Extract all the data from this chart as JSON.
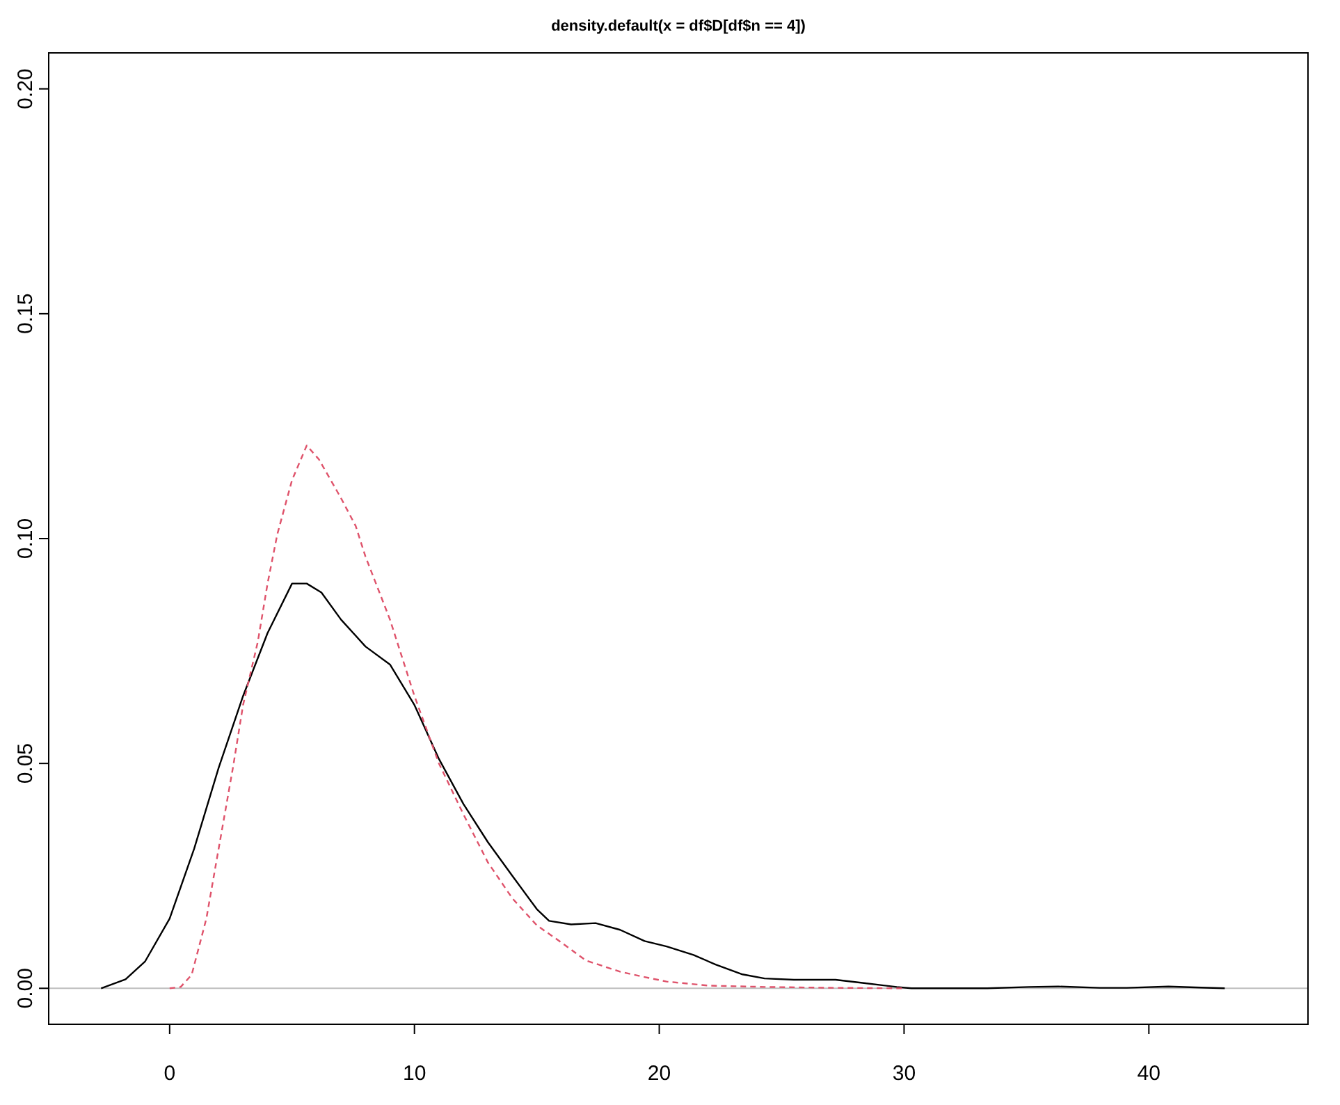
{
  "chart_data": {
    "type": "line",
    "title": "density.default(x = df$D[df$n == 4])",
    "xlim": [
      -4.94,
      46.5
    ],
    "ylim": [
      -0.008,
      0.208
    ],
    "xticks": [
      0,
      10,
      20,
      30,
      40
    ],
    "yticks": [
      {
        "value": 0,
        "label": "0.00"
      },
      {
        "value": 0.05,
        "label": "0.05"
      },
      {
        "value": 0.1,
        "label": "0.10"
      },
      {
        "value": 0.15,
        "label": "0.15"
      },
      {
        "value": 0.2,
        "label": "0.20"
      }
    ],
    "grid": false,
    "ref_lines": [
      {
        "axis": "y",
        "value": 0,
        "color": "#bebebe"
      }
    ],
    "series": [
      {
        "color": "#000000",
        "line_style": "solid",
        "x": [
          -2.8,
          -1.8,
          -1,
          0,
          1,
          2,
          3,
          4,
          5,
          5.6,
          6.2,
          7,
          8,
          9,
          10,
          11,
          12,
          13,
          14,
          15,
          15.5,
          16.4,
          17.4,
          18.4,
          19.4,
          20.3,
          21.4,
          22.3,
          23.4,
          24.3,
          25.5,
          27.2,
          28.3,
          29.7,
          30.3,
          32.8,
          33.4,
          35.1,
          36.3,
          38,
          39.1,
          40.8,
          41.9,
          43.1
        ],
        "values": [
          0,
          0.002,
          0.006,
          0.0155,
          0.031,
          0.049,
          0.065,
          0.079,
          0.09,
          0.09,
          0.088,
          0.082,
          0.076,
          0.072,
          0.063,
          0.051,
          0.041,
          0.0325,
          0.025,
          0.0176,
          0.015,
          0.0142,
          0.0145,
          0.013,
          0.0105,
          0.0093,
          0.0074,
          0.0053,
          0.0031,
          0.0022,
          0.0019,
          0.0019,
          0.0012,
          0.0003,
          0,
          0,
          0,
          0.0003,
          0.0004,
          0.0001,
          0.0001,
          0.0004,
          0.0002,
          0
        ]
      },
      {
        "color": "#df536b",
        "line_style": "dashed",
        "x": [
          0,
          0.45,
          0.9,
          1.5,
          2,
          2.6,
          3,
          3.6,
          4,
          4.4,
          5,
          5.6,
          6.1,
          7,
          7.6,
          8,
          9,
          10,
          11,
          12,
          13,
          14,
          15,
          16,
          17,
          18.4,
          19.4,
          20.3,
          22,
          24.3,
          27.2,
          30
        ],
        "values": [
          0,
          0.0003,
          0.003,
          0.0155,
          0.031,
          0.0495,
          0.063,
          0.077,
          0.09,
          0.101,
          0.113,
          0.1207,
          0.1176,
          0.109,
          0.1028,
          0.096,
          0.082,
          0.065,
          0.05,
          0.0387,
          0.028,
          0.02,
          0.014,
          0.0102,
          0.0062,
          0.0037,
          0.0025,
          0.0015,
          0.0006,
          0.0003,
          0.0001,
          0
        ]
      }
    ]
  }
}
